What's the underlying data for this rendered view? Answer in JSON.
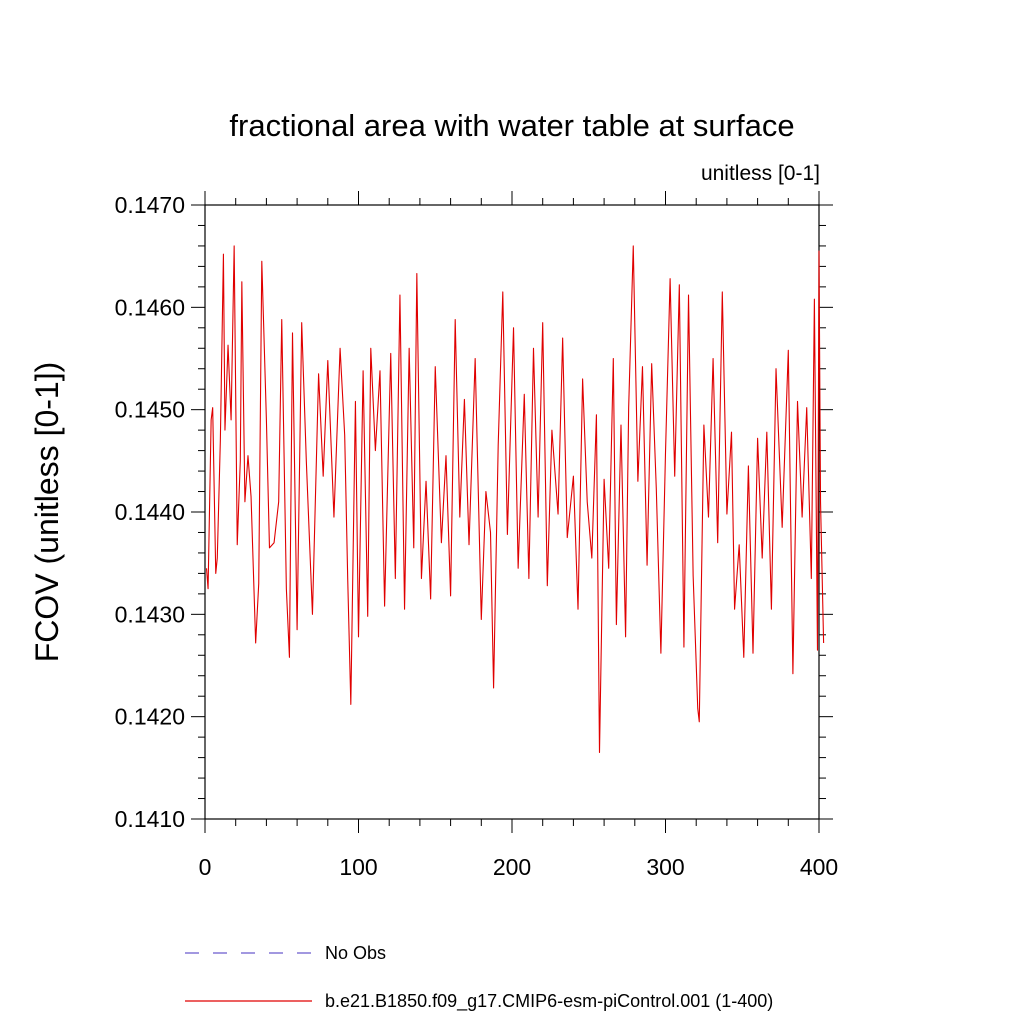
{
  "chart_data": {
    "type": "line",
    "title": "fractional area with water table at surface",
    "subtitle": "unitless [0-1]",
    "ylabel": "FCOV  (unitless [0-1])",
    "xlabel": "",
    "xlim": [
      0,
      400
    ],
    "ylim": [
      0.141,
      0.147
    ],
    "x_ticks": [
      0,
      100,
      200,
      300,
      400
    ],
    "x_tick_labels": [
      "0",
      "100",
      "200",
      "300",
      "400"
    ],
    "y_ticks": [
      0.141,
      0.142,
      0.143,
      0.144,
      0.145,
      0.146,
      0.147
    ],
    "y_tick_labels": [
      "0.1410",
      "0.1420",
      "0.1430",
      "0.1440",
      "0.1450",
      "0.1460",
      "0.1470"
    ],
    "grid": false,
    "legend_placement": "bottom",
    "legend": [
      {
        "label": "No Obs",
        "color": "#6a5acd",
        "style": "dashed"
      },
      {
        "label": "b.e21.B1850.f09_g17.CMIP6-esm-piControl.001 (1-400)",
        "color": "#e00000",
        "style": "solid"
      }
    ],
    "series": [
      {
        "name": "b.e21.B1850.f09_g17.CMIP6-esm-piControl.001 (1-400)",
        "color": "#e00000",
        "anchors": [
          [
            1,
            0.14345
          ],
          [
            2,
            0.14325
          ],
          [
            4,
            0.1449
          ],
          [
            5,
            0.14502
          ],
          [
            7,
            0.1434
          ],
          [
            8,
            0.14355
          ],
          [
            10,
            0.1447
          ],
          [
            12,
            0.14652
          ],
          [
            13,
            0.1448
          ],
          [
            15,
            0.14563
          ],
          [
            17,
            0.1449
          ],
          [
            19,
            0.1466
          ],
          [
            21,
            0.14368
          ],
          [
            23,
            0.1445
          ],
          [
            24,
            0.14625
          ],
          [
            26,
            0.1441
          ],
          [
            28,
            0.14455
          ],
          [
            30,
            0.14415
          ],
          [
            33,
            0.14272
          ],
          [
            35,
            0.1433
          ],
          [
            37,
            0.14645
          ],
          [
            40,
            0.1449
          ],
          [
            42,
            0.14365
          ],
          [
            45,
            0.1437
          ],
          [
            48,
            0.1441
          ],
          [
            50,
            0.14588
          ],
          [
            53,
            0.14325
          ],
          [
            55,
            0.14258
          ],
          [
            57,
            0.14575
          ],
          [
            60,
            0.14285
          ],
          [
            63,
            0.14585
          ],
          [
            66,
            0.1445
          ],
          [
            70,
            0.143
          ],
          [
            74,
            0.14535
          ],
          [
            77,
            0.14435
          ],
          [
            80,
            0.14548
          ],
          [
            84,
            0.14395
          ],
          [
            88,
            0.1456
          ],
          [
            91,
            0.14475
          ],
          [
            93,
            0.14333
          ],
          [
            95,
            0.14212
          ],
          [
            98,
            0.14508
          ],
          [
            100,
            0.14278
          ],
          [
            103,
            0.14538
          ],
          [
            106,
            0.14298
          ],
          [
            108,
            0.1456
          ],
          [
            111,
            0.1446
          ],
          [
            114,
            0.14538
          ],
          [
            117,
            0.14308
          ],
          [
            121,
            0.14555
          ],
          [
            124,
            0.14335
          ],
          [
            127,
            0.14612
          ],
          [
            130,
            0.14305
          ],
          [
            133,
            0.1456
          ],
          [
            136,
            0.14365
          ],
          [
            138,
            0.14633
          ],
          [
            141,
            0.14335
          ],
          [
            144,
            0.1443
          ],
          [
            147,
            0.14315
          ],
          [
            150,
            0.14542
          ],
          [
            154,
            0.1437
          ],
          [
            157,
            0.14455
          ],
          [
            160,
            0.14318
          ],
          [
            163,
            0.14588
          ],
          [
            166,
            0.14395
          ],
          [
            169,
            0.1451
          ],
          [
            172,
            0.14368
          ],
          [
            176,
            0.1455
          ],
          [
            180,
            0.14295
          ],
          [
            183,
            0.1442
          ],
          [
            186,
            0.1438
          ],
          [
            188,
            0.14228
          ],
          [
            191,
            0.14465
          ],
          [
            194,
            0.14615
          ],
          [
            197,
            0.14378
          ],
          [
            201,
            0.1458
          ],
          [
            204,
            0.14345
          ],
          [
            208,
            0.14515
          ],
          [
            211,
            0.14335
          ],
          [
            214,
            0.1456
          ],
          [
            217,
            0.14395
          ],
          [
            220,
            0.14585
          ],
          [
            223,
            0.14328
          ],
          [
            226,
            0.1448
          ],
          [
            230,
            0.14398
          ],
          [
            233,
            0.1457
          ],
          [
            236,
            0.14375
          ],
          [
            240,
            0.14435
          ],
          [
            243,
            0.14305
          ],
          [
            246,
            0.1453
          ],
          [
            249,
            0.1441
          ],
          [
            252,
            0.14355
          ],
          [
            255,
            0.14495
          ],
          [
            257,
            0.14165
          ],
          [
            260,
            0.14432
          ],
          [
            263,
            0.14345
          ],
          [
            266,
            0.1455
          ],
          [
            268,
            0.1429
          ],
          [
            271,
            0.14485
          ],
          [
            274,
            0.14278
          ],
          [
            276,
            0.14502
          ],
          [
            279,
            0.1466
          ],
          [
            282,
            0.1443
          ],
          [
            285,
            0.14542
          ],
          [
            288,
            0.14348
          ],
          [
            291,
            0.14545
          ],
          [
            294,
            0.14423
          ],
          [
            297,
            0.14262
          ],
          [
            300,
            0.14458
          ],
          [
            303,
            0.14628
          ],
          [
            306,
            0.14435
          ],
          [
            309,
            0.14622
          ],
          [
            312,
            0.14268
          ],
          [
            315,
            0.14612
          ],
          [
            318,
            0.14338
          ],
          [
            321,
            0.14208
          ],
          [
            322,
            0.14195
          ],
          [
            325,
            0.14485
          ],
          [
            328,
            0.14395
          ],
          [
            331,
            0.1455
          ],
          [
            334,
            0.1437
          ],
          [
            337,
            0.14615
          ],
          [
            340,
            0.14398
          ],
          [
            343,
            0.14478
          ],
          [
            345,
            0.14305
          ],
          [
            348,
            0.14368
          ],
          [
            351,
            0.14258
          ],
          [
            354,
            0.14445
          ],
          [
            357,
            0.14262
          ],
          [
            360,
            0.14472
          ],
          [
            363,
            0.14355
          ],
          [
            366,
            0.14478
          ],
          [
            369,
            0.14305
          ],
          [
            372,
            0.1454
          ],
          [
            376,
            0.14385
          ],
          [
            380,
            0.14558
          ],
          [
            383,
            0.14242
          ],
          [
            386,
            0.14508
          ],
          [
            389,
            0.14395
          ],
          [
            392,
            0.14502
          ],
          [
            395,
            0.14335
          ],
          [
            397,
            0.14608
          ],
          [
            399,
            0.14265
          ],
          [
            400,
            0.14655
          ],
          [
            401,
            0.1441
          ],
          [
            403,
            0.14272
          ]
        ]
      }
    ]
  }
}
